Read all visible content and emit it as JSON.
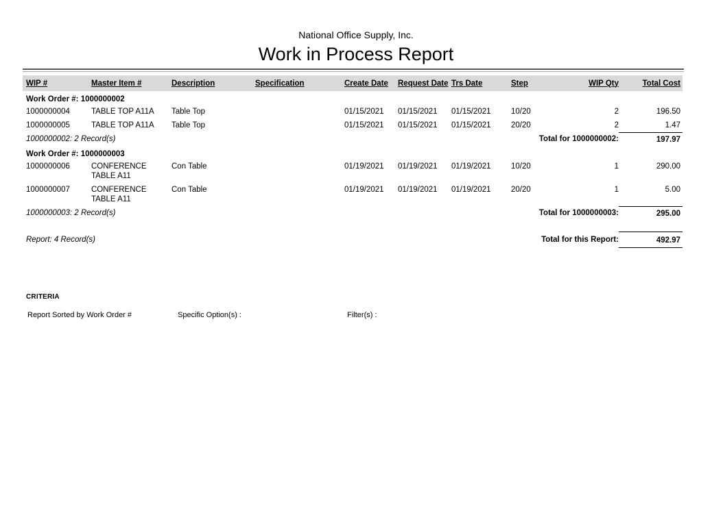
{
  "header": {
    "company": "National Office Supply, Inc.",
    "title": "Work in Process Report"
  },
  "table": {
    "columns": [
      {
        "label": "WIP #"
      },
      {
        "label": "Master Item #"
      },
      {
        "label": "Description"
      },
      {
        "label": "Specification"
      },
      {
        "label": "Create Date"
      },
      {
        "label": "Request Date"
      },
      {
        "label": "Trs Date"
      },
      {
        "label": "Step"
      },
      {
        "label": "WIP Qty"
      },
      {
        "label": "Total Cost"
      }
    ],
    "groups": [
      {
        "header_label": "Work Order #:",
        "work_order": "1000000002",
        "rows": [
          {
            "wip": "1000000004",
            "master_item": "TABLE TOP A11A",
            "description": "Table Top",
            "specification": "",
            "create_date": "01/15/2021",
            "request_date": "01/15/2021",
            "trs_date": "01/15/2021",
            "step": "10/20",
            "wip_qty": "2",
            "total_cost": "196.50"
          },
          {
            "wip": "1000000005",
            "master_item": "TABLE TOP A11A",
            "description": "Table Top",
            "specification": "",
            "create_date": "01/15/2021",
            "request_date": "01/15/2021",
            "trs_date": "01/15/2021",
            "step": "20/20",
            "wip_qty": "2",
            "total_cost": "1.47"
          }
        ],
        "summary": "1000000002: 2 Record(s)",
        "total_label": "Total for 1000000002:",
        "total_value": "197.97"
      },
      {
        "header_label": "Work Order #:",
        "work_order": "1000000003",
        "rows": [
          {
            "wip": "1000000006",
            "master_item": "CONFERENCE TABLE A11",
            "description": "Con Table",
            "specification": "",
            "create_date": "01/19/2021",
            "request_date": "01/19/2021",
            "trs_date": "01/19/2021",
            "step": "10/20",
            "wip_qty": "1",
            "total_cost": "290.00"
          },
          {
            "wip": "1000000007",
            "master_item": "CONFERENCE TABLE A11",
            "description": "Con Table",
            "specification": "",
            "create_date": "01/19/2021",
            "request_date": "01/19/2021",
            "trs_date": "01/19/2021",
            "step": "20/20",
            "wip_qty": "1",
            "total_cost": "5.00"
          }
        ],
        "summary": "1000000003: 2 Record(s)",
        "total_label": "Total for 1000000003:",
        "total_value": "295.00"
      }
    ]
  },
  "footer": {
    "summary": "Report: 4 Record(s)",
    "total_label": "Total for this Report:",
    "total_value": "492.97"
  },
  "criteria": {
    "heading": "CRITERIA",
    "sorted_by": "Report Sorted by Work Order #",
    "specific_options_label": "Specific Option(s) :",
    "filters_label": "Filter(s) :"
  },
  "colors": {
    "header_bar": "#d9d9d9",
    "rule_dark": "#595959",
    "rule_light": "#a6a6a6",
    "total_rule": "#000000",
    "text": "#000000",
    "background": "#ffffff"
  }
}
